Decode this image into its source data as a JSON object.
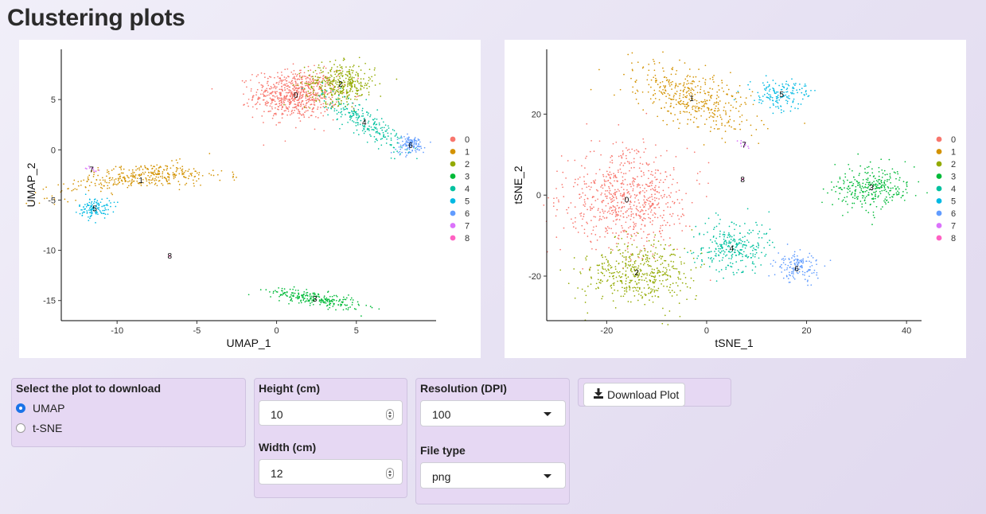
{
  "page": {
    "title": "Clustering plots"
  },
  "colors": {
    "clusters": [
      "#F8766D",
      "#D39200",
      "#93AA00",
      "#00BA38",
      "#00C19F",
      "#00B9E3",
      "#619CFF",
      "#DB72FB",
      "#FF61C3"
    ],
    "panel_bg": "#e6d8f3",
    "radio_accent": "#1a73e8"
  },
  "chart_data": [
    {
      "type": "scatter",
      "title": "",
      "xlabel": "UMAP_1",
      "ylabel": "UMAP_2",
      "xlim": [
        -13.5,
        10
      ],
      "ylim": [
        -17,
        10
      ],
      "xticks": [
        -10,
        -5,
        0,
        5
      ],
      "yticks": [
        5,
        0,
        -5,
        -10,
        -15
      ],
      "grid": false,
      "legend_position": "right",
      "legend": [
        "0",
        "1",
        "2",
        "3",
        "4",
        "5",
        "6",
        "7",
        "8"
      ],
      "clusters": [
        {
          "name": "0",
          "cx": 1.2,
          "cy": 5.5,
          "sx": 1.3,
          "sy": 1.2,
          "n": 700,
          "shape": "blob"
        },
        {
          "name": "1",
          "cx": -8.5,
          "cy": -3.0,
          "sx": 2.6,
          "sy": 0.6,
          "n": 360,
          "shape": "arc"
        },
        {
          "name": "2",
          "cx": 4.0,
          "cy": 6.6,
          "sx": 1.1,
          "sy": 1.0,
          "n": 380,
          "shape": "blob"
        },
        {
          "name": "3",
          "cx": 2.4,
          "cy": -14.8,
          "sx": 1.4,
          "sy": 0.35,
          "n": 240,
          "shape": "tilt"
        },
        {
          "name": "4",
          "cx": 5.5,
          "cy": 2.8,
          "sx": 1.3,
          "sy": 0.8,
          "n": 230,
          "shape": "diag"
        },
        {
          "name": "5",
          "cx": -11.4,
          "cy": -5.8,
          "sx": 0.5,
          "sy": 0.5,
          "n": 120,
          "shape": "blob"
        },
        {
          "name": "6",
          "cx": 8.4,
          "cy": 0.5,
          "sx": 0.45,
          "sy": 0.45,
          "n": 120,
          "shape": "blob"
        },
        {
          "name": "7",
          "cx": -11.6,
          "cy": -1.9,
          "sx": 0.25,
          "sy": 0.12,
          "n": 12,
          "shape": "blob"
        },
        {
          "name": "8",
          "cx": -6.7,
          "cy": -10.5,
          "sx": 0.05,
          "sy": 0.05,
          "n": 3,
          "shape": "blob"
        }
      ]
    },
    {
      "type": "scatter",
      "title": "",
      "xlabel": "tSNE_1",
      "ylabel": "tSNE_2",
      "xlim": [
        -32,
        43
      ],
      "ylim": [
        -31,
        36
      ],
      "xticks": [
        -20,
        0,
        20,
        40
      ],
      "yticks": [
        20,
        0,
        -20
      ],
      "grid": false,
      "legend_position": "right",
      "legend": [
        "0",
        "1",
        "2",
        "3",
        "4",
        "5",
        "6",
        "7",
        "8"
      ],
      "clusters": [
        {
          "name": "0",
          "cx": -16,
          "cy": -1,
          "sx": 6.2,
          "sy": 6.0,
          "n": 700,
          "shape": "blob"
        },
        {
          "name": "1",
          "cx": -3,
          "cy": 24,
          "sx": 6.0,
          "sy": 3.5,
          "n": 420,
          "shape": "diagdown"
        },
        {
          "name": "2",
          "cx": -14,
          "cy": -19,
          "sx": 5.2,
          "sy": 4.0,
          "n": 460,
          "shape": "blob"
        },
        {
          "name": "3",
          "cx": 33,
          "cy": 2,
          "sx": 3.8,
          "sy": 2.7,
          "n": 300,
          "shape": "blob"
        },
        {
          "name": "4",
          "cx": 5,
          "cy": -13,
          "sx": 3.5,
          "sy": 3.2,
          "n": 280,
          "shape": "blob"
        },
        {
          "name": "5",
          "cx": 15,
          "cy": 25,
          "sx": 2.8,
          "sy": 1.8,
          "n": 150,
          "shape": "blob"
        },
        {
          "name": "6",
          "cx": 18,
          "cy": -18,
          "sx": 2.2,
          "sy": 1.8,
          "n": 140,
          "shape": "blob"
        },
        {
          "name": "7",
          "cx": 7.5,
          "cy": 12.5,
          "sx": 0.8,
          "sy": 0.5,
          "n": 12,
          "shape": "blob"
        },
        {
          "name": "8",
          "cx": 7.2,
          "cy": 4,
          "sx": 0.1,
          "sy": 0.1,
          "n": 3,
          "shape": "blob"
        }
      ]
    }
  ],
  "download_panel": {
    "plot_select": {
      "label": "Select the plot to download",
      "options": [
        "UMAP",
        "t-SNE"
      ],
      "selected": "UMAP"
    },
    "height": {
      "label": "Height (cm)",
      "value": "10"
    },
    "width": {
      "label": "Width (cm)",
      "value": "12"
    },
    "resolution": {
      "label": "Resolution (DPI)",
      "value": "100"
    },
    "file_type": {
      "label": "File type",
      "value": "png"
    },
    "download_button": {
      "label": "Download Plot",
      "icon": "download-icon"
    }
  }
}
